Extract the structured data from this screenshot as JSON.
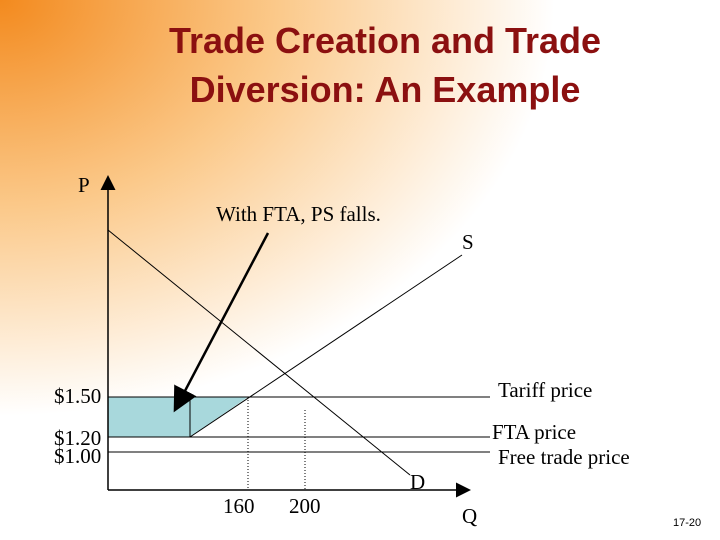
{
  "title": {
    "line1": "Trade Creation and Trade",
    "line2": "Diversion: An Example"
  },
  "axes": {
    "y": "P",
    "x": "Q"
  },
  "annotation": "With FTA, PS falls.",
  "curves": {
    "supply": "S",
    "demand": "D"
  },
  "prices": {
    "tariff": "$1.50",
    "fta": "$1.20",
    "free": "$1.00"
  },
  "price_labels": {
    "tariff": "Tariff price",
    "fta": "FTA price",
    "free": "Free trade price"
  },
  "quantities": {
    "q1": "160",
    "q2": "200"
  },
  "slide_number": "17-20"
}
